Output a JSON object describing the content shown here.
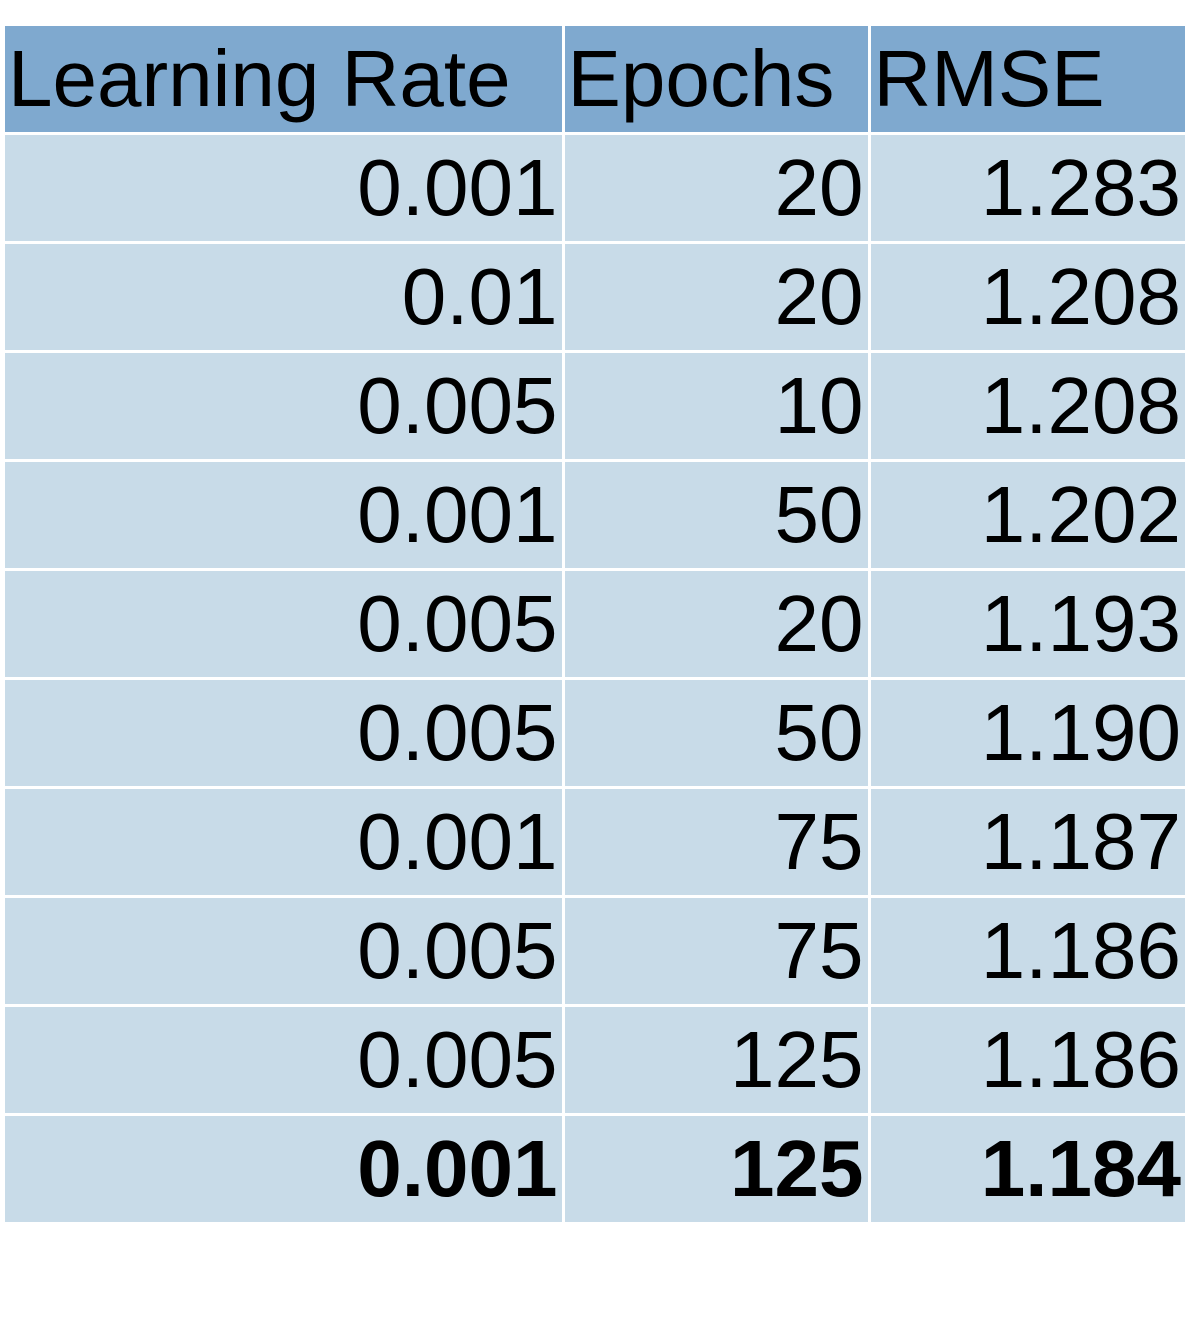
{
  "colors": {
    "header_bg": "#7fa9cf",
    "row_bg": "#c8dbe8",
    "grid_line": "#ffffff",
    "text": "#000000"
  },
  "chart_data": {
    "type": "table",
    "columns": [
      "Learning Rate",
      "Epochs",
      "RMSE"
    ],
    "rows": [
      [
        "0.001",
        "20",
        "1.283"
      ],
      [
        "0.01",
        "20",
        "1.208"
      ],
      [
        "0.005",
        "10",
        "1.208"
      ],
      [
        "0.001",
        "50",
        "1.202"
      ],
      [
        "0.005",
        "20",
        "1.193"
      ],
      [
        "0.005",
        "50",
        "1.190"
      ],
      [
        "0.001",
        "75",
        "1.187"
      ],
      [
        "0.005",
        "75",
        "1.186"
      ],
      [
        "0.005",
        "125",
        "1.186"
      ],
      [
        "0.001",
        "125",
        "1.184"
      ]
    ],
    "bold_row_index": 9
  }
}
